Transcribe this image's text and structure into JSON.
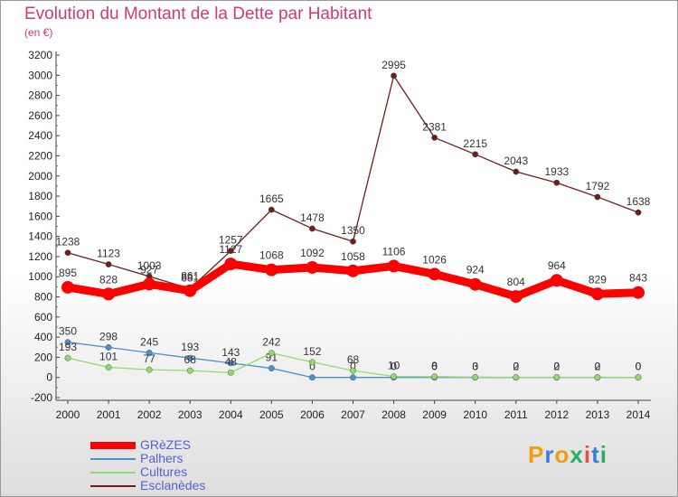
{
  "title": "Evolution du Montant de la Dette par Habitant",
  "unit": "(en €)",
  "logo": {
    "text": "Proxiti",
    "colors": [
      "#f39c12",
      "#3b7ddd",
      "#f39c12",
      "#27ae60",
      "#e74c3c",
      "#3b7ddd",
      "#27ae60"
    ]
  },
  "chart_data": {
    "type": "line",
    "x": [
      "2000",
      "2001",
      "2002",
      "2003",
      "2004",
      "2005",
      "2006",
      "2007",
      "2008",
      "2009",
      "2010",
      "2011",
      "2012",
      "2013",
      "2014"
    ],
    "ylim": [
      -200,
      3200
    ],
    "yticks": [
      "-200",
      "0",
      "200",
      "400",
      "600",
      "800",
      "1000",
      "1200",
      "1400",
      "1600",
      "1800",
      "2000",
      "2200",
      "2400",
      "2600",
      "2800",
      "3000",
      "3200"
    ],
    "grid": false,
    "legend_position": "bottom-left",
    "series": [
      {
        "name": "Esclanèdes",
        "color": "#6e1d1d",
        "values": [
          1238,
          1123,
          1003,
          881,
          1257,
          1665,
          1478,
          1350,
          2995,
          2381,
          2215,
          2043,
          1933,
          1792,
          1638
        ]
      },
      {
        "name": "Palhers",
        "color": "#4b8fd0",
        "values": [
          350,
          298,
          245,
          193,
          143,
          91,
          0,
          0,
          0,
          0,
          0,
          0,
          0,
          0,
          0
        ]
      },
      {
        "name": "Cultures",
        "color": "#8fdc6a",
        "values": [
          193,
          101,
          77,
          68,
          48,
          242,
          152,
          68,
          10,
          8,
          3,
          2,
          2,
          2,
          0
        ]
      },
      {
        "name": "GRèZES",
        "color": "#ff0000",
        "values": [
          895,
          828,
          927,
          861,
          1127,
          1068,
          1092,
          1058,
          1106,
          1026,
          924,
          804,
          964,
          829,
          843
        ]
      }
    ]
  }
}
